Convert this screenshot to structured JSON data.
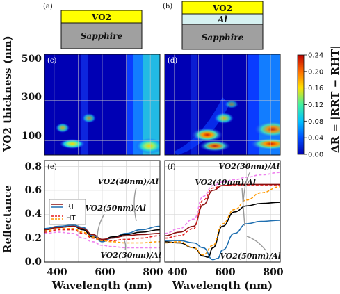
{
  "panels": {
    "a": {
      "label": "(a)",
      "layers": [
        "VO2",
        "Sapphire"
      ]
    },
    "b": {
      "label": "(b)",
      "layers": [
        "VO2",
        "Al",
        "Sapphire"
      ]
    },
    "c": {
      "label": "(c)"
    },
    "d": {
      "label": "(d)"
    },
    "e": {
      "label": "(e)"
    },
    "f": {
      "label": "(f)"
    }
  },
  "colors": {
    "sapphire": "#a0a0a0",
    "vo2": "#ffff00",
    "al": "#d6f1f1",
    "rt_vo2": "#8b1010",
    "rt_al": "#1f6fb0",
    "ht_vo2": "#e31a1c",
    "ht_al": "#ee82ee",
    "black": "#000000",
    "orange": "#ff9900"
  },
  "chart_data": [
    {
      "type": "heatmap",
      "panel": "c",
      "ylabel": "VO2 thickness (nm)",
      "yticks": [
        100,
        300,
        500
      ],
      "ylim": [
        30,
        530
      ],
      "xlim": [
        360,
        840
      ],
      "grid": true,
      "colorbar": {
        "label": "ΔR = |RRT − RHT|",
        "ticks": [
          "0.00",
          "0.04",
          "0.08",
          "0.12",
          "0.16",
          "0.20",
          "0.24"
        ],
        "range": [
          0,
          0.24
        ]
      },
      "features": [
        {
          "wavelength": 520,
          "thickness": 75,
          "dR": 0.06
        },
        {
          "wavelength": 480,
          "thickness": 140,
          "dR": 0.05
        },
        {
          "wavelength": 600,
          "thickness": 230,
          "dR": 0.04
        },
        {
          "wavelength": 740,
          "thickness": 60,
          "dR": 0.1
        },
        {
          "wavelength": 800,
          "thickness": 280,
          "dR": 0.07
        }
      ]
    },
    {
      "type": "heatmap",
      "panel": "d",
      "yticks": [
        100,
        300,
        500
      ],
      "ylim": [
        30,
        530
      ],
      "xlim": [
        360,
        840
      ],
      "grid": true,
      "features": [
        {
          "wavelength": 500,
          "thickness": 90,
          "dR": 0.2
        },
        {
          "wavelength": 530,
          "thickness": 55,
          "dR": 0.17
        },
        {
          "wavelength": 570,
          "thickness": 150,
          "dR": 0.07
        },
        {
          "wavelength": 600,
          "thickness": 230,
          "dR": 0.05
        },
        {
          "wavelength": 810,
          "thickness": 55,
          "dR": 0.22
        },
        {
          "wavelength": 800,
          "thickness": 110,
          "dR": 0.18
        }
      ]
    },
    {
      "type": "line",
      "panel": "e",
      "xlabel": "Wavelength (nm)",
      "ylabel": "Reflectance",
      "xticks": [
        400,
        600,
        800
      ],
      "yticks": [
        "0.0",
        "0.2",
        "0.4",
        "0.6",
        "0.8"
      ],
      "xlim": [
        360,
        840
      ],
      "ylim": [
        0,
        0.85
      ],
      "legend": [
        "RT",
        "HT"
      ],
      "annotations": [
        "VO2(40nm)/Al",
        "VO2(50nm)/Al",
        "VO2(30nm)/Al"
      ],
      "series": [
        {
          "color": "#1f6fb0",
          "dash": false,
          "x": [
            360,
            420,
            480,
            520,
            560,
            600,
            640,
            700,
            760,
            840
          ],
          "y": [
            0.28,
            0.3,
            0.31,
            0.29,
            0.22,
            0.17,
            0.2,
            0.24,
            0.27,
            0.3
          ]
        },
        {
          "color": "#000000",
          "dash": false,
          "x": [
            360,
            420,
            480,
            520,
            560,
            600,
            640,
            700,
            760,
            840
          ],
          "y": [
            0.27,
            0.29,
            0.3,
            0.27,
            0.21,
            0.18,
            0.21,
            0.23,
            0.25,
            0.27
          ]
        },
        {
          "color": "#8b1010",
          "dash": false,
          "x": [
            360,
            420,
            480,
            520,
            560,
            600,
            640,
            700,
            760,
            840
          ],
          "y": [
            0.27,
            0.29,
            0.3,
            0.28,
            0.23,
            0.19,
            0.2,
            0.22,
            0.23,
            0.24
          ]
        },
        {
          "color": "#e31a1c",
          "dash": true,
          "x": [
            360,
            420,
            480,
            520,
            560,
            600,
            640,
            700,
            760,
            840
          ],
          "y": [
            0.25,
            0.27,
            0.27,
            0.24,
            0.2,
            0.18,
            0.18,
            0.19,
            0.2,
            0.22
          ]
        },
        {
          "color": "#ff9900",
          "dash": true,
          "x": [
            360,
            420,
            480,
            520,
            560,
            600,
            640,
            700,
            760,
            840
          ],
          "y": [
            0.26,
            0.28,
            0.28,
            0.25,
            0.21,
            0.18,
            0.17,
            0.16,
            0.16,
            0.17
          ]
        },
        {
          "color": "#ee82ee",
          "dash": true,
          "x": [
            360,
            420,
            480,
            520,
            560,
            600,
            640,
            700,
            760,
            840
          ],
          "y": [
            0.24,
            0.25,
            0.24,
            0.2,
            0.17,
            0.14,
            0.13,
            0.12,
            0.12,
            0.12
          ]
        }
      ]
    },
    {
      "type": "line",
      "panel": "f",
      "xlabel": "Wavelength (nm)",
      "xticks": [
        400,
        600,
        800
      ],
      "xlim": [
        360,
        840
      ],
      "ylim": [
        0,
        0.85
      ],
      "annotations": [
        "VO2(30nm)/Al",
        "VO2(40nm)/Al",
        "VO2(50nm)/Al"
      ],
      "series": [
        {
          "color": "#8b1010",
          "dash": false,
          "x": [
            360,
            420,
            480,
            520,
            560,
            600,
            650,
            700,
            760,
            840
          ],
          "y": [
            0.22,
            0.25,
            0.3,
            0.48,
            0.6,
            0.64,
            0.65,
            0.65,
            0.65,
            0.65
          ]
        },
        {
          "color": "#000000",
          "dash": false,
          "x": [
            360,
            420,
            480,
            520,
            540,
            560,
            600,
            650,
            700,
            760,
            840
          ],
          "y": [
            0.17,
            0.16,
            0.12,
            0.05,
            0.04,
            0.12,
            0.3,
            0.42,
            0.47,
            0.49,
            0.5
          ]
        },
        {
          "color": "#1f6fb0",
          "dash": false,
          "x": [
            360,
            420,
            480,
            520,
            560,
            580,
            600,
            650,
            700,
            760,
            840
          ],
          "y": [
            0.18,
            0.18,
            0.16,
            0.12,
            0.02,
            0.03,
            0.1,
            0.24,
            0.32,
            0.34,
            0.35
          ]
        },
        {
          "color": "#e31a1c",
          "dash": true,
          "x": [
            360,
            420,
            480,
            520,
            560,
            600,
            650,
            700,
            760,
            840
          ],
          "y": [
            0.2,
            0.22,
            0.28,
            0.52,
            0.62,
            0.64,
            0.64,
            0.64,
            0.64,
            0.64
          ]
        },
        {
          "color": "#ff9900",
          "dash": true,
          "x": [
            360,
            420,
            480,
            520,
            560,
            600,
            650,
            700,
            760,
            840
          ],
          "y": [
            0.16,
            0.17,
            0.12,
            0.06,
            0.14,
            0.32,
            0.44,
            0.52,
            0.58,
            0.63
          ]
        },
        {
          "color": "#ee82ee",
          "dash": true,
          "x": [
            360,
            420,
            480,
            520,
            560,
            600,
            650,
            700,
            760,
            840
          ],
          "y": [
            0.24,
            0.28,
            0.36,
            0.55,
            0.64,
            0.67,
            0.69,
            0.71,
            0.73,
            0.75
          ]
        }
      ]
    }
  ]
}
